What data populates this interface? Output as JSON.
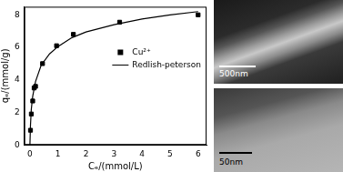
{
  "chart_data": {
    "type": "scatter",
    "x_label": "Cₑ/(mmol/L)",
    "y_label": "qₑ/(mmol/g)",
    "xlim": [
      -0.2,
      6.3
    ],
    "xticks": [
      0,
      1,
      2,
      3,
      4,
      5,
      6
    ],
    "ylim": [
      0,
      8.5
    ],
    "yticks": [
      0,
      2,
      4,
      6,
      8
    ],
    "grid": false,
    "legend": "right",
    "series": [
      {
        "name": "Cu²⁺",
        "type": "scatter",
        "marker": "square",
        "color": "#000000",
        "x": [
          0.02,
          0.05,
          0.1,
          0.15,
          0.2,
          0.45,
          0.95,
          1.55,
          3.2,
          6.0
        ],
        "values": [
          0.9,
          1.9,
          2.7,
          3.5,
          3.6,
          5.0,
          6.1,
          6.8,
          7.55,
          8.0
        ]
      },
      {
        "name": "Redlish-peterson",
        "type": "line",
        "color": "#000000",
        "x": [
          0,
          0.02,
          0.05,
          0.1,
          0.2,
          0.4,
          0.7,
          1,
          1.5,
          2,
          3,
          4,
          5,
          6
        ],
        "values": [
          0,
          1.2,
          2.2,
          3.0,
          3.9,
          4.9,
          5.6,
          6.05,
          6.6,
          6.95,
          7.4,
          7.75,
          8.0,
          8.2
        ]
      }
    ]
  },
  "images": [
    {
      "scale_bar": "500nm"
    },
    {
      "scale_bar": "50nm"
    }
  ]
}
